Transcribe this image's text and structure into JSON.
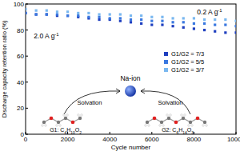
{
  "chart_data": {
    "type": "scatter",
    "x_label": "Cycle number",
    "y_label": "Discharge capacity retention ratio (%)",
    "x": [
      0,
      500,
      1000,
      1500,
      2000,
      2500,
      3000,
      3500,
      4000,
      4500,
      5000,
      5500,
      6000,
      6500,
      7000,
      7500,
      8000,
      8500,
      9000,
      9500,
      10000
    ],
    "series": [
      {
        "name": "G1/G2 = 7/3",
        "color": "#1f3fbf",
        "marker": "square",
        "values": [
          93,
          92,
          92,
          91,
          91,
          90,
          89,
          88,
          88,
          87,
          86,
          85,
          84,
          84,
          83,
          82,
          81,
          80,
          79,
          78,
          78
        ]
      },
      {
        "name": "G1/G2 = 5/5",
        "color": "#3a78e0",
        "marker": "square",
        "values": [
          93,
          92,
          92,
          92,
          91,
          91,
          90,
          90,
          89,
          89,
          88,
          88,
          87,
          87,
          86,
          86,
          85,
          85,
          84,
          84,
          83
        ]
      },
      {
        "name": "G1/G2 = 3/7",
        "color": "#7ab8f0",
        "marker": "square",
        "values": [
          96,
          95,
          95,
          94,
          94,
          93,
          93,
          92,
          92,
          92,
          91,
          91,
          90,
          90,
          89,
          89,
          89,
          88,
          88,
          88,
          87
        ]
      }
    ],
    "xlim": [
      0,
      10000
    ],
    "xticks": [
      0,
      2000,
      4000,
      6000,
      8000,
      10000
    ],
    "ylim": [
      0,
      100
    ],
    "yticks": [
      0,
      20,
      40,
      60,
      80,
      100
    ],
    "legend": "right",
    "annotations": [
      "0.2 A g-1",
      "2.0 A g-1",
      "Na-ion",
      "Solvation",
      "Solvation",
      "G1: C4H10O2",
      "G2: C6H14O3"
    ]
  }
}
